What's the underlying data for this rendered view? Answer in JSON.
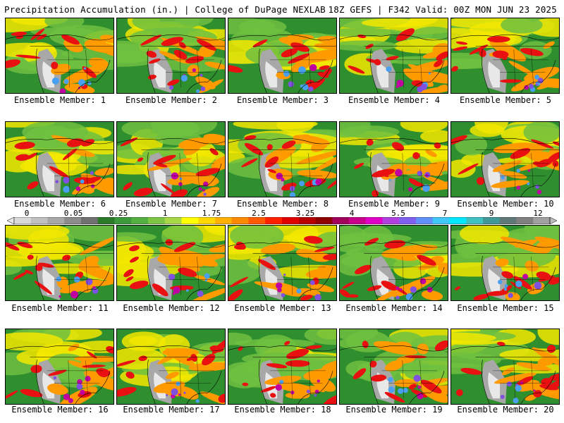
{
  "header": {
    "title_left": "Precipitation Accumulation (in.) | College of DuPage NEXLAB",
    "title_right": "18Z GEFS | F342 Valid: 00Z MON JUN 23 2025"
  },
  "panels": [
    {
      "label": "Ensemble Member: 1"
    },
    {
      "label": "Ensemble Member: 2"
    },
    {
      "label": "Ensemble Member: 3"
    },
    {
      "label": "Ensemble Member: 4"
    },
    {
      "label": "Ensemble Member: 5"
    },
    {
      "label": "Ensemble Member: 6"
    },
    {
      "label": "Ensemble Member: 7"
    },
    {
      "label": "Ensemble Member: 8"
    },
    {
      "label": "Ensemble Member: 9"
    },
    {
      "label": "Ensemble Member: 10"
    },
    {
      "label": "Ensemble Member: 11"
    },
    {
      "label": "Ensemble Member: 12"
    },
    {
      "label": "Ensemble Member: 13"
    },
    {
      "label": "Ensemble Member: 14"
    },
    {
      "label": "Ensemble Member: 15"
    },
    {
      "label": "Ensemble Member: 16"
    },
    {
      "label": "Ensemble Member: 17"
    },
    {
      "label": "Ensemble Member: 18"
    },
    {
      "label": "Ensemble Member: 19"
    },
    {
      "label": "Ensemble Member: 20"
    }
  ],
  "colorbar": {
    "tick_labels": [
      "0",
      "0.05",
      "0.25",
      "1",
      "1.75",
      "2.5",
      "3.25",
      "4",
      "5.5",
      "7",
      "9",
      "12"
    ],
    "colors": [
      "#d9d9d9",
      "#c0c0c0",
      "#a8a8a8",
      "#8c8c8c",
      "#707070",
      "#2a7a2a",
      "#3c9a3c",
      "#55b043",
      "#7cc644",
      "#a8d848",
      "#ffff00",
      "#ffd800",
      "#ffb000",
      "#ff8a00",
      "#ff5a00",
      "#ff2000",
      "#e00000",
      "#b80000",
      "#900000",
      "#a0005a",
      "#c8008c",
      "#e000c8",
      "#b040e0",
      "#8060f0",
      "#6090f8",
      "#40c8f8",
      "#00e8ff",
      "#40c0c0",
      "#409898",
      "#607878",
      "#808080",
      "#a0a0a0"
    ]
  },
  "map_colors": {
    "land_green": "#2f8f2f",
    "light_green": "#6fbf3f",
    "yellow": "#f2e800",
    "orange": "#ff9a00",
    "red": "#e81010",
    "magenta": "#c000a0",
    "purple": "#8050e0",
    "blue": "#4aa0f0",
    "gray": "#a8a8a8",
    "white": "#e8e8e8"
  }
}
